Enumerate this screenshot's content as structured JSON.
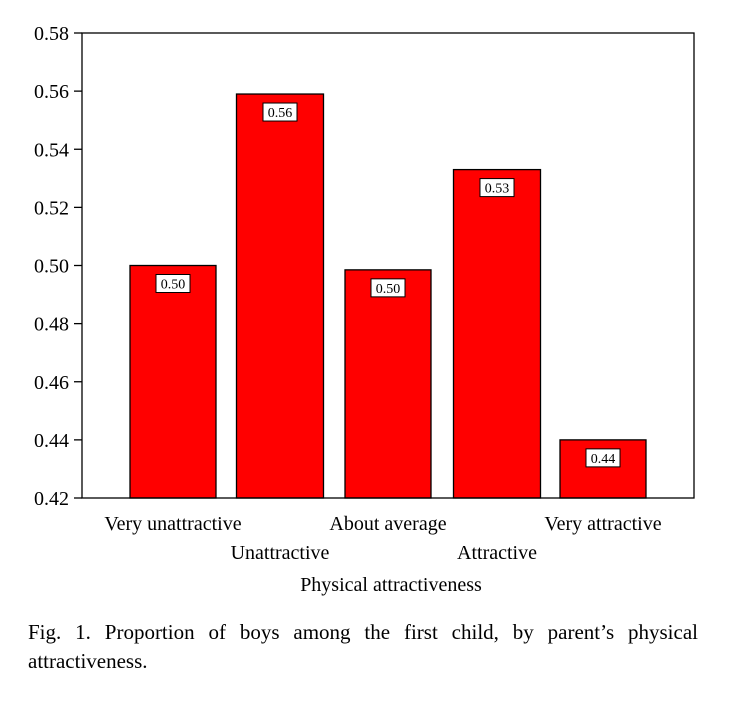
{
  "chart_data": {
    "type": "bar",
    "categories": [
      "Very unattractive",
      "Unattractive",
      "About average",
      "Attractive",
      "Very attractive"
    ],
    "values": [
      0.5,
      0.559,
      0.4985,
      0.533,
      0.44
    ],
    "data_labels": [
      "0.50",
      "0.56",
      "0.50",
      "0.53",
      "0.44"
    ],
    "xlabel": "Physical attractiveness",
    "ylabel": "",
    "ylim": [
      0.42,
      0.58
    ],
    "yticks": [
      0.42,
      0.44,
      0.46,
      0.48,
      0.5,
      0.52,
      0.54,
      0.56,
      0.58
    ],
    "ytick_labels": [
      "0.42",
      "0.44",
      "0.46",
      "0.48",
      "0.50",
      "0.52",
      "0.54",
      "0.56",
      "0.58"
    ],
    "grid": false,
    "bar_color": "#ff0000"
  },
  "caption": "Fig. 1. Proportion of boys among the first child, by parent’s physical attractiveness."
}
